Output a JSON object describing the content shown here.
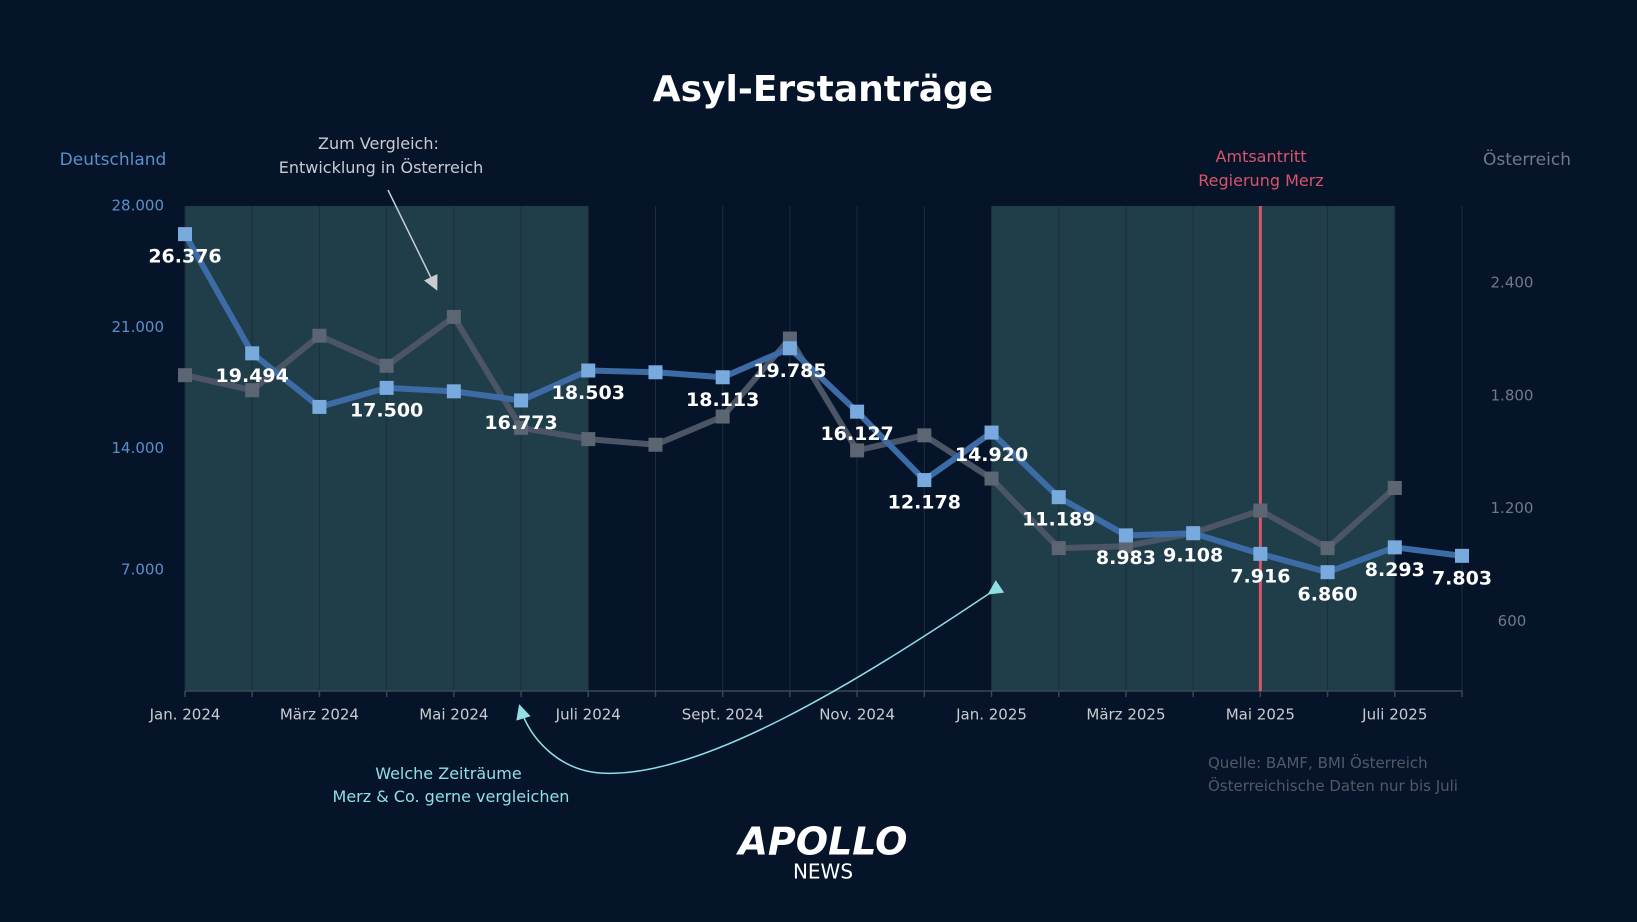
{
  "chart_data": {
    "type": "line",
    "title": "Asyl-Erstanträge",
    "y_axis_label": "Deutschland",
    "y2_axis_label": "Österreich",
    "categories": [
      "Jan. 2024",
      null,
      "März 2024",
      null,
      "Mai 2024",
      null,
      "Juli 2024",
      null,
      "Sept. 2024",
      null,
      "Nov. 2024",
      null,
      "Jan. 2025",
      null,
      "März 2025",
      null,
      "Mai 2025",
      null,
      "Juli 2025",
      null
    ],
    "series": [
      {
        "name": "Österreich",
        "axis": "y2",
        "color": "#4b5565",
        "marker_color": "#5c6572",
        "values": [
          1910,
          1830,
          2120,
          1960,
          2220,
          1630,
          1570,
          1540,
          1690,
          2105,
          1510,
          1590,
          1360,
          990,
          1000,
          1070,
          1190,
          990,
          1310,
          null
        ]
      },
      {
        "name": "Deutschland",
        "color": "#3c6ba6",
        "marker_color": "#78aade",
        "values": [
          26376,
          19494,
          16400,
          17500,
          17300,
          16773,
          18503,
          18400,
          18113,
          19785,
          16127,
          12178,
          14920,
          11189,
          8983,
          9108,
          7916,
          6860,
          8293,
          7803
        ],
        "value_labels": [
          "26.376",
          "19.494",
          null,
          "17.500",
          null,
          "16.773",
          "18.503",
          null,
          "18.113",
          "19.785",
          "16.127",
          "12.178",
          "14.920",
          "11.189",
          "8.983",
          "9.108",
          "7.916",
          "6.860",
          "8.293",
          "7.803"
        ]
      }
    ],
    "ylim": [
      0,
      28000
    ],
    "yticks": [
      {
        "value": 7000,
        "label": "7.000"
      },
      {
        "value": 14000,
        "label": "14.000"
      },
      {
        "value": 21000,
        "label": "21.000"
      },
      {
        "value": 28000,
        "label": "28.000"
      }
    ],
    "y2lim": [
      230,
      2810
    ],
    "y2ticks": [
      600,
      {
        "value": 1200,
        "label": "1.200"
      },
      {
        "value": 1800,
        "label": "1.800"
      },
      {
        "value": 2400,
        "label": "2.400"
      }
    ],
    "vertical_grid": true,
    "shaded_ranges": [
      [
        0,
        6
      ],
      [
        12,
        18
      ]
    ],
    "shade_color": "#1f3e4a",
    "marker_line": {
      "index": 16,
      "color": "#d9536a",
      "label": [
        "Amtsantritt",
        "Regierung Merz"
      ]
    },
    "annotations": [
      {
        "lines": [
          "Zum Vergleich:",
          "Entwicklung in Österreich"
        ]
      },
      {
        "lines": [
          "Welche Zeiträume",
          "Merz & Co.  gerne vergleichen"
        ]
      }
    ],
    "source": [
      "Quelle: BAMF, BMI Österreich",
      "Österreichische Daten nur bis Juli"
    ],
    "logo": {
      "name": "APOLLO",
      "sub": "NEWS"
    }
  }
}
